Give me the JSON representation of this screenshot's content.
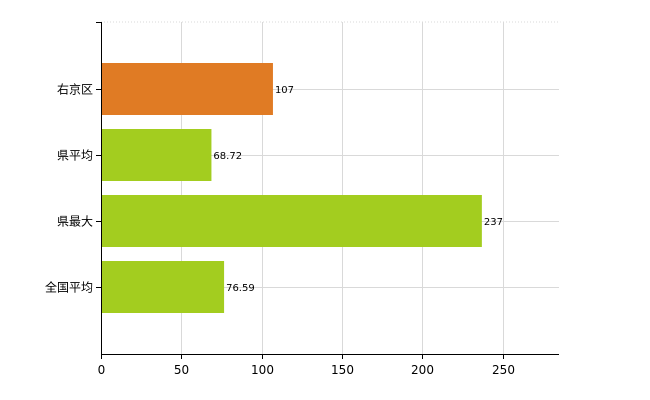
{
  "chart_data": {
    "type": "bar",
    "orientation": "horizontal",
    "categories": [
      "右京区",
      "県平均",
      "県最大",
      "全国平均"
    ],
    "values": [
      107,
      68.72,
      237,
      76.59
    ],
    "value_labels": [
      "107",
      "68.72",
      "237",
      "76.59"
    ],
    "colors": [
      "#e07b24",
      "#a3cd1f",
      "#a3cd1f",
      "#a3cd1f"
    ],
    "xlim": [
      0,
      285
    ],
    "x_ticks": [
      0,
      50,
      100,
      150,
      200,
      250
    ],
    "grid": true,
    "title": "",
    "xlabel": "",
    "ylabel": ""
  }
}
